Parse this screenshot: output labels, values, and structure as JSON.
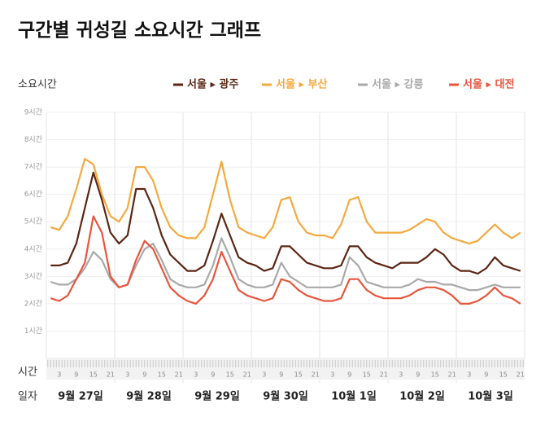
{
  "chart_data": {
    "type": "line",
    "title": "구간별 귀성길 소요시간 그래프",
    "y_label": "소요시간",
    "x_label": "시간",
    "day_label": "일자",
    "days": [
      "9월 27일",
      "9월 28일",
      "9월 29일",
      "9월 30일",
      "10월 1일",
      "10월 2일",
      "10월 3일"
    ],
    "categories": [
      null,
      "3",
      null,
      "9",
      null,
      "15",
      null,
      "21",
      null,
      "3",
      null,
      "9",
      null,
      "15",
      null,
      "21",
      null,
      "3",
      null,
      "9",
      null,
      "15",
      null,
      "21",
      null,
      "3",
      null,
      "9",
      null,
      "15",
      null,
      "21",
      null,
      "3",
      null,
      "9",
      null,
      "15",
      null,
      "21",
      null,
      "3",
      null,
      "9",
      null,
      "15",
      null,
      "21",
      null,
      "3",
      null,
      "9",
      null,
      "15",
      null,
      "21"
    ],
    "ylim": [
      0,
      9
    ],
    "yticks": [
      {
        "value": 1,
        "label": "1시간"
      },
      {
        "value": 2,
        "label": "2시간"
      },
      {
        "value": 3,
        "label": "3시간"
      },
      {
        "value": 4,
        "label": "4시간"
      },
      {
        "value": 5,
        "label": "5시간"
      },
      {
        "value": 6,
        "label": "6시간"
      },
      {
        "value": 7,
        "label": "7시간"
      },
      {
        "value": 8,
        "label": "8시간"
      },
      {
        "value": 9,
        "label": "9시간"
      }
    ],
    "grid": true,
    "legend": "top-right",
    "series": [
      {
        "name": "서울 ▸ 광주",
        "color": "#5b2714",
        "values": [
          3.4,
          3.4,
          3.5,
          4.2,
          5.5,
          6.8,
          5.8,
          4.6,
          4.2,
          4.5,
          6.2,
          6.2,
          5.5,
          4.5,
          3.8,
          3.5,
          3.2,
          3.2,
          3.4,
          4.3,
          5.3,
          4.5,
          3.7,
          3.5,
          3.4,
          3.2,
          3.3,
          4.1,
          4.1,
          3.8,
          3.5,
          3.4,
          3.3,
          3.3,
          3.4,
          4.1,
          4.1,
          3.7,
          3.5,
          3.4,
          3.3,
          3.5,
          3.5,
          3.5,
          3.7,
          4.0,
          3.8,
          3.4,
          3.2,
          3.2,
          3.1,
          3.3,
          3.7,
          3.4,
          3.3,
          3.2
        ]
      },
      {
        "name": "서울 ▸ 부산",
        "color": "#f4a93f",
        "values": [
          4.8,
          4.7,
          5.2,
          6.2,
          7.3,
          7.1,
          6.0,
          5.2,
          5.0,
          5.5,
          7.0,
          7.0,
          6.5,
          5.5,
          4.8,
          4.5,
          4.4,
          4.4,
          4.8,
          6.0,
          7.2,
          5.8,
          4.8,
          4.6,
          4.5,
          4.4,
          4.8,
          5.8,
          5.9,
          5.0,
          4.6,
          4.5,
          4.5,
          4.4,
          4.9,
          5.8,
          5.9,
          5.0,
          4.6,
          4.6,
          4.6,
          4.6,
          4.7,
          4.9,
          5.1,
          5.0,
          4.6,
          4.4,
          4.3,
          4.2,
          4.3,
          4.6,
          4.9,
          4.6,
          4.4,
          4.6
        ]
      },
      {
        "name": "서울 ▸ 강릉",
        "color": "#a9a9a9",
        "values": [
          2.8,
          2.7,
          2.7,
          2.9,
          3.3,
          3.9,
          3.6,
          2.9,
          2.6,
          2.7,
          3.4,
          4.0,
          4.2,
          3.6,
          2.9,
          2.7,
          2.6,
          2.6,
          2.7,
          3.4,
          4.4,
          3.7,
          2.9,
          2.7,
          2.6,
          2.6,
          2.7,
          3.5,
          3.0,
          2.8,
          2.6,
          2.6,
          2.6,
          2.6,
          2.7,
          3.7,
          3.4,
          2.8,
          2.7,
          2.6,
          2.6,
          2.6,
          2.7,
          2.9,
          2.8,
          2.8,
          2.7,
          2.7,
          2.6,
          2.5,
          2.5,
          2.6,
          2.7,
          2.6,
          2.6,
          2.6
        ]
      },
      {
        "name": "서울 ▸ 대전",
        "color": "#e8553d",
        "values": [
          2.2,
          2.1,
          2.3,
          2.9,
          3.5,
          5.2,
          4.6,
          3.0,
          2.6,
          2.7,
          3.6,
          4.3,
          4.0,
          3.3,
          2.6,
          2.3,
          2.1,
          2.0,
          2.3,
          2.9,
          3.9,
          3.2,
          2.5,
          2.3,
          2.2,
          2.1,
          2.2,
          2.9,
          2.8,
          2.5,
          2.3,
          2.2,
          2.1,
          2.1,
          2.2,
          2.9,
          2.9,
          2.5,
          2.3,
          2.2,
          2.2,
          2.2,
          2.3,
          2.5,
          2.6,
          2.6,
          2.5,
          2.3,
          2.0,
          2.0,
          2.1,
          2.3,
          2.6,
          2.3,
          2.2,
          2.0
        ]
      }
    ]
  }
}
